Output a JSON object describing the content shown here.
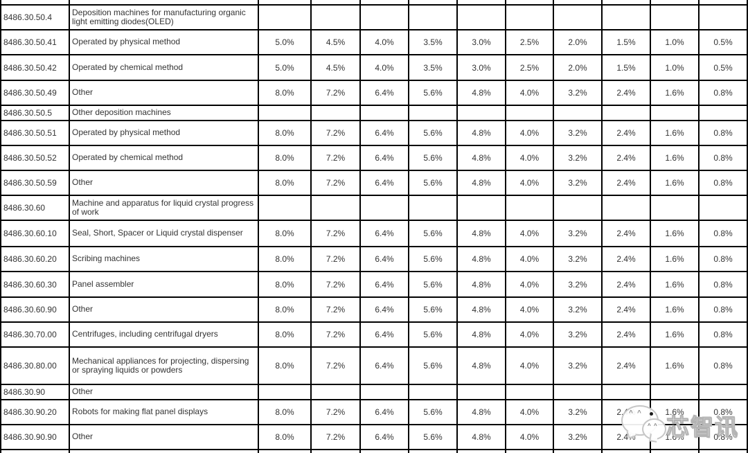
{
  "colors": {
    "border": "#000000",
    "text": "#333333",
    "watermark_outline": "#b3b3b3",
    "watermark_fill": "#ffffff"
  },
  "table": {
    "rows": [
      {
        "code": "8486.30.50.4",
        "description": "Deposition machines for manufacturing organic light emitting diodes(OLED)",
        "rates": [
          "",
          "",
          "",
          "",
          "",
          "",
          "",
          "",
          "",
          ""
        ]
      },
      {
        "code": "8486.30.50.41",
        "description": "Operated by physical method",
        "rates": [
          "5.0%",
          "4.5%",
          "4.0%",
          "3.5%",
          "3.0%",
          "2.5%",
          "2.0%",
          "1.5%",
          "1.0%",
          "0.5%"
        ]
      },
      {
        "code": "8486.30.50.42",
        "description": "Operated by chemical method",
        "rates": [
          "5.0%",
          "4.5%",
          "4.0%",
          "3.5%",
          "3.0%",
          "2.5%",
          "2.0%",
          "1.5%",
          "1.0%",
          "0.5%"
        ]
      },
      {
        "code": "8486.30.50.49",
        "description": "Other",
        "rates": [
          "8.0%",
          "7.2%",
          "6.4%",
          "5.6%",
          "4.8%",
          "4.0%",
          "3.2%",
          "2.4%",
          "1.6%",
          "0.8%"
        ]
      },
      {
        "code": "8486.30.50.5",
        "description": "Other deposition machines",
        "rates": [
          "",
          "",
          "",
          "",
          "",
          "",
          "",
          "",
          "",
          ""
        ]
      },
      {
        "code": "8486.30.50.51",
        "description": "Operated by physical method",
        "rates": [
          "8.0%",
          "7.2%",
          "6.4%",
          "5.6%",
          "4.8%",
          "4.0%",
          "3.2%",
          "2.4%",
          "1.6%",
          "0.8%"
        ]
      },
      {
        "code": "8486.30.50.52",
        "description": "Operated by chemical method",
        "rates": [
          "8.0%",
          "7.2%",
          "6.4%",
          "5.6%",
          "4.8%",
          "4.0%",
          "3.2%",
          "2.4%",
          "1.6%",
          "0.8%"
        ]
      },
      {
        "code": "8486.30.50.59",
        "description": "Other",
        "rates": [
          "8.0%",
          "7.2%",
          "6.4%",
          "5.6%",
          "4.8%",
          "4.0%",
          "3.2%",
          "2.4%",
          "1.6%",
          "0.8%"
        ]
      },
      {
        "code": "8486.30.60",
        "description": "Machine and apparatus for liquid crystal progress of work",
        "rates": [
          "",
          "",
          "",
          "",
          "",
          "",
          "",
          "",
          "",
          ""
        ]
      },
      {
        "code": "8486.30.60.10",
        "description": "Seal, Short, Spacer or Liquid crystal dispenser",
        "rates": [
          "8.0%",
          "7.2%",
          "6.4%",
          "5.6%",
          "4.8%",
          "4.0%",
          "3.2%",
          "2.4%",
          "1.6%",
          "0.8%"
        ]
      },
      {
        "code": "8486.30.60.20",
        "description": "Scribing machines",
        "rates": [
          "8.0%",
          "7.2%",
          "6.4%",
          "5.6%",
          "4.8%",
          "4.0%",
          "3.2%",
          "2.4%",
          "1.6%",
          "0.8%"
        ]
      },
      {
        "code": "8486.30.60.30",
        "description": "Panel assembler",
        "rates": [
          "8.0%",
          "7.2%",
          "6.4%",
          "5.6%",
          "4.8%",
          "4.0%",
          "3.2%",
          "2.4%",
          "1.6%",
          "0.8%"
        ]
      },
      {
        "code": "8486.30.60.90",
        "description": "Other",
        "rates": [
          "8.0%",
          "7.2%",
          "6.4%",
          "5.6%",
          "4.8%",
          "4.0%",
          "3.2%",
          "2.4%",
          "1.6%",
          "0.8%"
        ]
      },
      {
        "code": "8486.30.70.00",
        "description": "Centrifuges, including centrifugal dryers",
        "rates": [
          "8.0%",
          "7.2%",
          "6.4%",
          "5.6%",
          "4.8%",
          "4.0%",
          "3.2%",
          "2.4%",
          "1.6%",
          "0.8%"
        ]
      },
      {
        "code": "8486.30.80.00",
        "description": "Mechanical appliances for projecting, dispersing or spraying liquids or powders",
        "rates": [
          "8.0%",
          "7.2%",
          "6.4%",
          "5.6%",
          "4.8%",
          "4.0%",
          "3.2%",
          "2.4%",
          "1.6%",
          "0.8%"
        ]
      },
      {
        "code": "8486.30.90",
        "description": "Other",
        "rates": [
          "",
          "",
          "",
          "",
          "",
          "",
          "",
          "",
          "",
          ""
        ]
      },
      {
        "code": "8486.30.90.20",
        "description": "Robots for making flat panel displays",
        "rates": [
          "8.0%",
          "7.2%",
          "6.4%",
          "5.6%",
          "4.8%",
          "4.0%",
          "3.2%",
          "2.4%",
          "1.6%",
          "0.8%"
        ]
      },
      {
        "code": "8486.30.90.90",
        "description": "Other",
        "rates": [
          "8.0%",
          "7.2%",
          "6.4%",
          "5.6%",
          "4.8%",
          "4.0%",
          "3.2%",
          "2.4%",
          "1.6%",
          "0.8%"
        ]
      }
    ]
  },
  "watermark": {
    "text": "芯智讯"
  }
}
